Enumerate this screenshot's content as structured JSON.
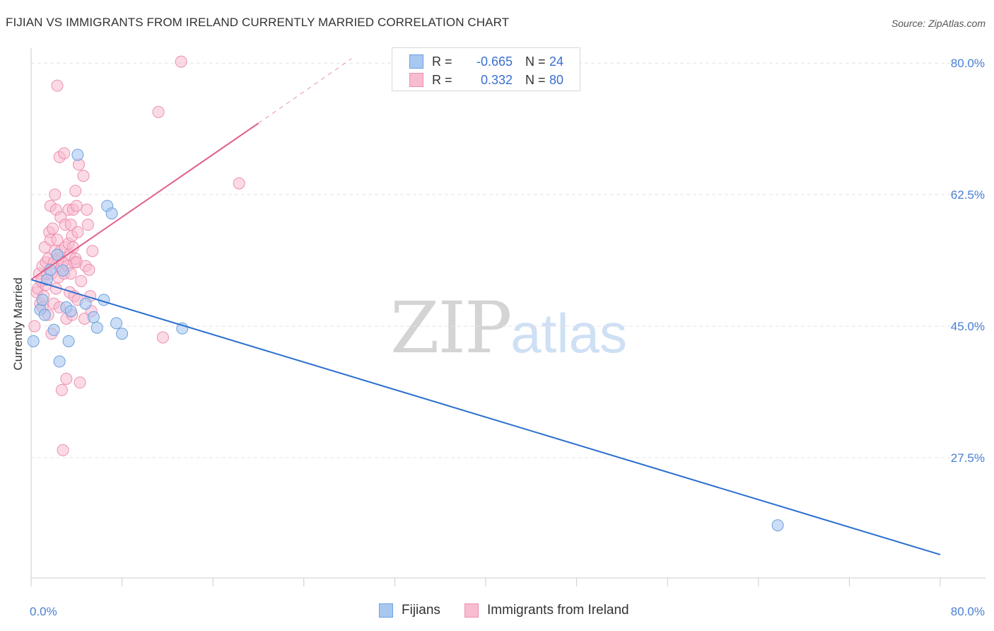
{
  "header": {
    "title": "FIJIAN VS IMMIGRANTS FROM IRELAND CURRENTLY MARRIED CORRELATION CHART",
    "source": "Source: ZipAtlas.com"
  },
  "watermark": {
    "zip": "ZIP",
    "atlas": "atlas"
  },
  "legend": {
    "r_label": "R =",
    "n_label": "N =",
    "rows": [
      {
        "name": "Fijians",
        "r": "-0.665",
        "n": "24"
      },
      {
        "name": "Immigrants from Ireland",
        "r": "0.332",
        "n": "80"
      }
    ]
  },
  "colors": {
    "fijians_fill": "#a9c8f0",
    "fijians_stroke": "#6f9fe0",
    "fijians_line": "#2b6fd0",
    "ireland_fill": "#f8bcd0",
    "ireland_stroke": "#ec90b0",
    "ireland_line": "#e0608c",
    "grid": "#e4e4e4",
    "axis_text": "#4a7fd4"
  },
  "chart_data": {
    "type": "scatter",
    "title": "FIJIAN VS IMMIGRANTS FROM IRELAND CURRENTLY MARRIED CORRELATION CHART",
    "xlabel": "",
    "ylabel": "Currently Married",
    "xlim": [
      0,
      80
    ],
    "ylim": [
      11.5,
      82
    ],
    "x_tick_labels": [
      "0.0%",
      "80.0%"
    ],
    "y_ticks": [
      27.5,
      45.0,
      62.5,
      80.0
    ],
    "y_tick_labels": [
      "27.5%",
      "45.0%",
      "62.5%",
      "80.0%"
    ],
    "grid": true,
    "legend_position": "bottom",
    "series": [
      {
        "name": "Fijians",
        "r": -0.665,
        "n": 24,
        "trend": {
          "x0": 0,
          "y0": 51.2,
          "x1": 80,
          "y1": 14.6
        },
        "points": [
          [
            0.2,
            43.0
          ],
          [
            0.8,
            47.2
          ],
          [
            1.0,
            48.5
          ],
          [
            1.2,
            46.5
          ],
          [
            1.4,
            51.2
          ],
          [
            1.7,
            52.5
          ],
          [
            2.0,
            44.5
          ],
          [
            2.3,
            54.5
          ],
          [
            2.5,
            40.3
          ],
          [
            2.8,
            52.4
          ],
          [
            3.1,
            47.5
          ],
          [
            3.3,
            43.0
          ],
          [
            3.5,
            47.0
          ],
          [
            4.1,
            67.8
          ],
          [
            4.8,
            48.0
          ],
          [
            5.5,
            46.2
          ],
          [
            5.8,
            44.8
          ],
          [
            6.4,
            48.5
          ],
          [
            6.7,
            61.0
          ],
          [
            7.1,
            60.0
          ],
          [
            7.5,
            45.4
          ],
          [
            8.0,
            44.0
          ],
          [
            13.3,
            44.7
          ],
          [
            65.7,
            18.5
          ]
        ]
      },
      {
        "name": "Immigrants from Ireland",
        "r": 0.332,
        "n": 80,
        "trend": {
          "x0": 0,
          "y0": 51.2,
          "x1": 20,
          "y1": 72.0
        },
        "trend_dashed": {
          "x0": 20,
          "y0": 72.0,
          "x1": 28.2,
          "y1": 80.6
        },
        "points": [
          [
            0.3,
            45.0
          ],
          [
            0.5,
            49.5
          ],
          [
            0.6,
            50.0
          ],
          [
            0.7,
            52.0
          ],
          [
            0.8,
            48.0
          ],
          [
            0.9,
            51.0
          ],
          [
            1.0,
            47.5
          ],
          [
            1.0,
            53.0
          ],
          [
            1.1,
            49.0
          ],
          [
            1.2,
            55.5
          ],
          [
            1.3,
            50.5
          ],
          [
            1.3,
            53.5
          ],
          [
            1.4,
            52.0
          ],
          [
            1.5,
            54.0
          ],
          [
            1.5,
            46.5
          ],
          [
            1.6,
            57.5
          ],
          [
            1.7,
            56.5
          ],
          [
            1.7,
            61.0
          ],
          [
            1.8,
            52.0
          ],
          [
            1.8,
            44.0
          ],
          [
            1.9,
            58.0
          ],
          [
            2.0,
            53.5
          ],
          [
            2.0,
            48.0
          ],
          [
            2.1,
            55.0
          ],
          [
            2.1,
            62.5
          ],
          [
            2.2,
            50.0
          ],
          [
            2.2,
            60.5
          ],
          [
            2.3,
            56.5
          ],
          [
            2.3,
            77.0
          ],
          [
            2.4,
            54.0
          ],
          [
            2.4,
            51.5
          ],
          [
            2.5,
            47.5
          ],
          [
            2.5,
            67.5
          ],
          [
            2.6,
            55.0
          ],
          [
            2.6,
            59.5
          ],
          [
            2.7,
            36.5
          ],
          [
            2.7,
            53.0
          ],
          [
            2.8,
            53.5
          ],
          [
            2.8,
            28.5
          ],
          [
            2.9,
            68.0
          ],
          [
            2.9,
            52.0
          ],
          [
            3.0,
            55.5
          ],
          [
            3.0,
            58.5
          ],
          [
            3.1,
            46.0
          ],
          [
            3.1,
            38.0
          ],
          [
            3.2,
            53.0
          ],
          [
            3.3,
            60.5
          ],
          [
            3.3,
            56.0
          ],
          [
            3.4,
            54.5
          ],
          [
            3.4,
            49.5
          ],
          [
            3.5,
            52.0
          ],
          [
            3.5,
            58.5
          ],
          [
            3.6,
            57.0
          ],
          [
            3.6,
            46.5
          ],
          [
            3.7,
            60.5
          ],
          [
            3.7,
            55.5
          ],
          [
            3.8,
            53.5
          ],
          [
            3.8,
            49.0
          ],
          [
            3.9,
            63.0
          ],
          [
            3.9,
            54.0
          ],
          [
            4.0,
            61.0
          ],
          [
            4.0,
            53.5
          ],
          [
            4.1,
            57.5
          ],
          [
            4.1,
            48.5
          ],
          [
            4.2,
            66.5
          ],
          [
            4.3,
            37.5
          ],
          [
            4.4,
            51.0
          ],
          [
            4.6,
            65.0
          ],
          [
            4.7,
            46.0
          ],
          [
            4.8,
            53.0
          ],
          [
            4.9,
            60.5
          ],
          [
            5.0,
            58.5
          ],
          [
            5.1,
            52.5
          ],
          [
            5.2,
            49.0
          ],
          [
            5.3,
            47.0
          ],
          [
            5.4,
            55.0
          ],
          [
            11.2,
            73.5
          ],
          [
            11.6,
            43.5
          ],
          [
            13.2,
            80.2
          ],
          [
            18.3,
            64.0
          ]
        ]
      }
    ]
  }
}
